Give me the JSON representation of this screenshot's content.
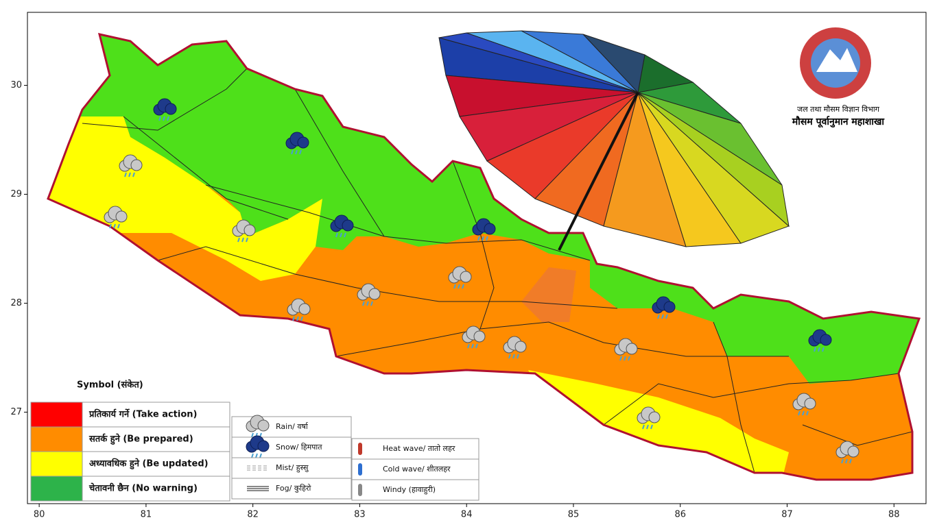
{
  "map": {
    "xlim": [
      79.89,
      88.3
    ],
    "ylim": [
      26.16,
      30.67
    ],
    "xticks": [
      80,
      81,
      82,
      83,
      84,
      85,
      86,
      87,
      88
    ],
    "yticks": [
      27,
      28,
      29,
      30
    ]
  },
  "logo": {
    "line1": "जल तथा मौसम विज्ञान विभाग",
    "line2": "मौसम पूर्वानुमान महाशाखा"
  },
  "legend": {
    "title": "Symbol (संकेत)",
    "levels": [
      {
        "label": "प्रतिकार्य गर्ने (Take action)",
        "color": "#ff0000"
      },
      {
        "label": "सतर्क हुने (Be prepared)",
        "color": "#ff8c00"
      },
      {
        "label": "अध्यावधिक हुने (Be updated)",
        "color": "#ffff00"
      },
      {
        "label": "चेतावनी छैन (No warning)",
        "color": "#2db34a"
      }
    ],
    "symbols": [
      "Rain/ वर्षा",
      "Snow/ हिमपात",
      "Mist/ हुस्सु",
      "Fog/ कुहिरो"
    ],
    "symbols2": [
      "Heat wave/ तातो लहर",
      "Cold wave/ शीतलहर",
      "Windy (हावाहुरी)"
    ]
  }
}
